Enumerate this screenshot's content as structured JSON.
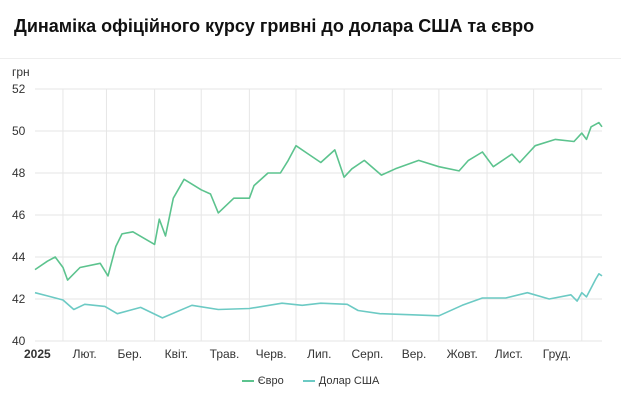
{
  "header": {
    "title": "Динаміка офіційного курсу гривні до долара США та євро"
  },
  "chart_data": {
    "type": "line",
    "title": "Динаміка офіційного курсу гривні до долара США та євро",
    "ylabel": "грн",
    "xlabel": "",
    "ylim": [
      40,
      52
    ],
    "yticks": [
      40,
      42,
      44,
      46,
      48,
      50,
      52
    ],
    "xlim": [
      "2025-01-14",
      "2026-01-14"
    ],
    "xticks": [
      {
        "label": "2025",
        "date": "2025-01-14",
        "bold": true
      },
      {
        "label": "Лют.",
        "date": "2025-02-15"
      },
      {
        "label": "Бер.",
        "date": "2025-03-16"
      },
      {
        "label": "Квіт.",
        "date": "2025-04-15"
      },
      {
        "label": "Трав.",
        "date": "2025-05-16"
      },
      {
        "label": "Черв.",
        "date": "2025-06-15"
      },
      {
        "label": "Лип.",
        "date": "2025-07-16"
      },
      {
        "label": "Серп.",
        "date": "2025-08-16"
      },
      {
        "label": "Вер.",
        "date": "2025-09-15"
      },
      {
        "label": "Жовт.",
        "date": "2025-10-16"
      },
      {
        "label": "Лист.",
        "date": "2025-11-15"
      },
      {
        "label": "Груд.",
        "date": "2025-12-16"
      }
    ],
    "gridlines_x": [
      "2025-02-01",
      "2025-03-01",
      "2025-04-01",
      "2025-05-01",
      "2025-06-01",
      "2025-07-01",
      "2025-08-01",
      "2025-09-01",
      "2025-10-01",
      "2025-11-01",
      "2025-12-01",
      "2026-01-01"
    ],
    "grid": true,
    "legend": "bottom",
    "series": [
      {
        "name": "Євро",
        "color": "#5cc38e",
        "points": [
          [
            "2025-01-14",
            43.4
          ],
          [
            "2025-01-22",
            43.8
          ],
          [
            "2025-01-27",
            44.0
          ],
          [
            "2025-02-01",
            43.5
          ],
          [
            "2025-02-04",
            42.9
          ],
          [
            "2025-02-12",
            43.5
          ],
          [
            "2025-02-25",
            43.7
          ],
          [
            "2025-03-02",
            43.1
          ],
          [
            "2025-03-07",
            44.5
          ],
          [
            "2025-03-11",
            45.1
          ],
          [
            "2025-03-18",
            45.2
          ],
          [
            "2025-04-01",
            44.6
          ],
          [
            "2025-04-04",
            45.8
          ],
          [
            "2025-04-08",
            45.0
          ],
          [
            "2025-04-13",
            46.8
          ],
          [
            "2025-04-20",
            47.7
          ],
          [
            "2025-05-01",
            47.2
          ],
          [
            "2025-05-07",
            47.0
          ],
          [
            "2025-05-12",
            46.1
          ],
          [
            "2025-05-22",
            46.8
          ],
          [
            "2025-06-01",
            46.8
          ],
          [
            "2025-06-04",
            47.4
          ],
          [
            "2025-06-13",
            48.0
          ],
          [
            "2025-06-21",
            48.0
          ],
          [
            "2025-06-26",
            48.6
          ],
          [
            "2025-07-01",
            49.3
          ],
          [
            "2025-07-09",
            48.9
          ],
          [
            "2025-07-17",
            48.5
          ],
          [
            "2025-07-26",
            49.1
          ],
          [
            "2025-08-01",
            47.8
          ],
          [
            "2025-08-06",
            48.2
          ],
          [
            "2025-08-14",
            48.6
          ],
          [
            "2025-08-25",
            47.9
          ],
          [
            "2025-09-03",
            48.2
          ],
          [
            "2025-09-18",
            48.6
          ],
          [
            "2025-10-01",
            48.3
          ],
          [
            "2025-10-14",
            48.1
          ],
          [
            "2025-10-20",
            48.6
          ],
          [
            "2025-10-29",
            49.0
          ],
          [
            "2025-11-05",
            48.3
          ],
          [
            "2025-11-17",
            48.9
          ],
          [
            "2025-11-22",
            48.5
          ],
          [
            "2025-12-02",
            49.3
          ],
          [
            "2025-12-15",
            49.6
          ],
          [
            "2025-12-27",
            49.5
          ],
          [
            "2026-01-01",
            49.9
          ],
          [
            "2026-01-04",
            49.6
          ],
          [
            "2026-01-07",
            50.2
          ],
          [
            "2026-01-12",
            50.4
          ],
          [
            "2026-01-14",
            50.2
          ]
        ]
      },
      {
        "name": "Долар США",
        "color": "#6ccac4",
        "points": [
          [
            "2025-01-14",
            42.3
          ],
          [
            "2025-01-22",
            42.15
          ],
          [
            "2025-02-01",
            41.95
          ],
          [
            "2025-02-08",
            41.5
          ],
          [
            "2025-02-15",
            41.75
          ],
          [
            "2025-02-28",
            41.65
          ],
          [
            "2025-03-08",
            41.3
          ],
          [
            "2025-03-23",
            41.6
          ],
          [
            "2025-04-06",
            41.1
          ],
          [
            "2025-04-25",
            41.7
          ],
          [
            "2025-05-12",
            41.5
          ],
          [
            "2025-06-01",
            41.55
          ],
          [
            "2025-06-22",
            41.8
          ],
          [
            "2025-07-05",
            41.7
          ],
          [
            "2025-07-17",
            41.8
          ],
          [
            "2025-08-03",
            41.75
          ],
          [
            "2025-08-10",
            41.45
          ],
          [
            "2025-08-24",
            41.3
          ],
          [
            "2025-09-14",
            41.25
          ],
          [
            "2025-10-01",
            41.2
          ],
          [
            "2025-10-16",
            41.7
          ],
          [
            "2025-10-29",
            42.05
          ],
          [
            "2025-11-13",
            42.05
          ],
          [
            "2025-11-27",
            42.3
          ],
          [
            "2025-12-11",
            42.0
          ],
          [
            "2025-12-25",
            42.2
          ],
          [
            "2025-12-29",
            41.9
          ],
          [
            "2026-01-01",
            42.3
          ],
          [
            "2026-01-04",
            42.1
          ],
          [
            "2026-01-10",
            42.95
          ],
          [
            "2026-01-12",
            43.2
          ],
          [
            "2026-01-14",
            43.1
          ]
        ]
      }
    ]
  }
}
